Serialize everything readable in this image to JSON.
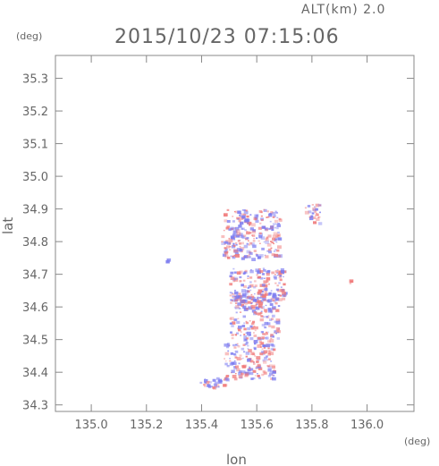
{
  "header": {
    "altitude_label": "ALT(km) 2.0",
    "datetime": "2015/10/23 07:15:06"
  },
  "chart_data": {
    "type": "scatter",
    "xlabel": "lon",
    "ylabel": "lat",
    "x_unit": "(deg)",
    "y_unit": "(deg)",
    "xlim": [
      134.87,
      136.17
    ],
    "ylim": [
      34.28,
      35.37
    ],
    "xticks": [
      "135.0",
      "135.2",
      "135.4",
      "135.6",
      "135.8",
      "136.0"
    ],
    "yticks": [
      "34.3",
      "34.4",
      "34.5",
      "34.6",
      "34.7",
      "34.8",
      "34.9",
      "35.0",
      "35.1",
      "35.2",
      "35.3"
    ],
    "grid": false,
    "colors": {
      "positive": "#f07a7a",
      "negative": "#7a7af0",
      "axis": "#888888",
      "text": "#666666"
    },
    "regions": [
      {
        "lon": [
          135.38,
          135.5
        ],
        "lat": [
          34.355,
          34.385
        ],
        "polarity": "mixed"
      },
      {
        "lon": [
          135.48,
          135.66
        ],
        "lat": [
          34.38,
          34.5
        ],
        "polarity": "mixed"
      },
      {
        "lon": [
          135.5,
          135.68
        ],
        "lat": [
          34.5,
          34.64
        ],
        "polarity": "mixed"
      },
      {
        "lon": [
          135.5,
          135.7
        ],
        "lat": [
          34.62,
          34.72
        ],
        "polarity": "mixed"
      },
      {
        "lon": [
          135.47,
          135.68
        ],
        "lat": [
          34.75,
          34.9
        ],
        "polarity": "mixed"
      },
      {
        "lon": [
          135.77,
          135.83
        ],
        "lat": [
          34.86,
          34.92
        ],
        "polarity": "mixed"
      },
      {
        "lon": [
          135.93,
          135.94
        ],
        "lat": [
          34.67,
          34.685
        ],
        "polarity": "positive"
      },
      {
        "lon": [
          135.27,
          135.28
        ],
        "lat": [
          34.74,
          34.75
        ],
        "polarity": "negative"
      }
    ]
  }
}
